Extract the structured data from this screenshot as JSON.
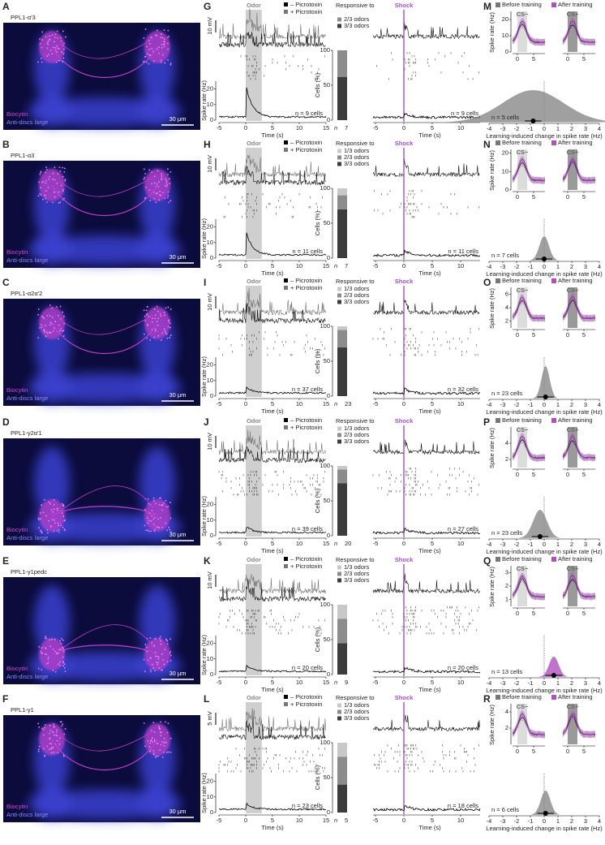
{
  "panels": [
    {
      "letter_image": "A",
      "neuron": "PPL1-α'3",
      "stain1": "Biocytin",
      "stain2": "Anti-discs large",
      "scale": "30 μm",
      "letter_odor": "G",
      "odor": "Odor",
      "pic_minus": "– Picrotoxin",
      "pic_plus": "+ Picrotoxin",
      "mv": "10 mV",
      "rate_label": "Spike rate (Hz)",
      "rate_ticks": [
        0,
        10,
        20
      ],
      "rate_lim": [
        0,
        25
      ],
      "time_ticks": [
        -5,
        0,
        5,
        10,
        15
      ],
      "time_label": "Time (s)",
      "odor_n": "n = 9 cells",
      "responsive": "Responsive to",
      "fractions": [
        {
          "name": "2/3 odors",
          "value": 38,
          "color": "#8c8c8c"
        },
        {
          "name": "3/3 odors",
          "value": 62,
          "color": "#3c3c3c"
        }
      ],
      "cells_label": "Cells (%)",
      "cells_ticks": [
        0,
        50,
        100
      ],
      "n_label": "n",
      "n_value": 7,
      "shock": "Shock",
      "shock_ticks": [
        -5,
        0,
        5,
        10
      ],
      "shock_time_label": "Time (s)",
      "shock_n": "n = 9 cells",
      "letter_train": "M",
      "before": "Before training",
      "after": "After training",
      "cs_minus": "CS−",
      "cs_plus": "CS+",
      "train_label": "Spike rate (Hz)",
      "train_ticks": [
        0,
        10,
        20
      ],
      "train_lim": [
        0,
        25
      ],
      "train_xticks": [
        0,
        5
      ],
      "change_label": "Learning-induced change in spike rate (Hz)",
      "change_ticks": [
        -4,
        -3,
        -2,
        -1,
        0,
        1,
        2,
        3,
        4
      ],
      "change_lim": [
        -4,
        4
      ],
      "mean": -0.8,
      "train_n": "n = 5 cells"
    },
    {
      "letter_image": "B",
      "neuron": "PPL1-α3",
      "stain1": "Biocytin",
      "stain2": "Anti-discs large",
      "scale": "30 μm",
      "letter_odor": "H",
      "odor": "Odor",
      "pic_minus": "– Picrotoxin",
      "pic_plus": "+ Picrotoxin",
      "mv": "10 mV",
      "rate_label": "Spike rate (Hz)",
      "rate_ticks": [
        0,
        10,
        20
      ],
      "rate_lim": [
        0,
        25
      ],
      "time_ticks": [
        -5,
        0,
        5,
        10,
        15
      ],
      "time_label": "Time (s)",
      "odor_n": "n = 11 cells",
      "responsive": "Responsive to",
      "fractions": [
        {
          "name": "1/3 odors",
          "value": 10,
          "color": "#c8c8c8"
        },
        {
          "name": "2/3 odors",
          "value": 20,
          "color": "#8c8c8c"
        },
        {
          "name": "3/3 odors",
          "value": 70,
          "color": "#3c3c3c"
        }
      ],
      "cells_label": "Cells (%)",
      "cells_ticks": [
        0,
        50,
        100
      ],
      "n_label": "n",
      "n_value": 7,
      "shock": "Shock",
      "shock_ticks": [
        -5,
        0,
        5,
        10
      ],
      "shock_time_label": "Time (s)",
      "shock_n": "n = 11 cells",
      "letter_train": "N",
      "before": "Before training",
      "after": "After training",
      "cs_minus": "CS−",
      "cs_plus": "CS+",
      "train_label": "Spike rate (Hz)",
      "train_ticks": [
        0,
        10,
        20
      ],
      "train_lim": [
        0,
        22
      ],
      "train_xticks": [
        0,
        5
      ],
      "change_label": "Learning-induced change in spike rate (Hz)",
      "change_ticks": [
        -4,
        -3,
        -2,
        -1,
        0,
        1,
        2,
        3,
        4
      ],
      "change_lim": [
        -4,
        4
      ],
      "mean": 0,
      "train_n": "n = 7 cells"
    },
    {
      "letter_image": "C",
      "neuron": "PPL1-α2α'2",
      "stain1": "Biocytin",
      "stain2": "Anti-discs large",
      "scale": "30 μm",
      "letter_odor": "I",
      "odor": "Odor",
      "pic_minus": "– Picrotoxin",
      "pic_plus": "+ Picrotoxin",
      "mv": "10 mV",
      "rate_label": "Spike rate (Hz)",
      "rate_ticks": [
        0,
        10,
        20
      ],
      "rate_lim": [
        0,
        25
      ],
      "time_ticks": [
        -5,
        0,
        5,
        10,
        15
      ],
      "time_label": "Time (s)",
      "odor_n": "n = 37 cells",
      "responsive": "Responsive to",
      "fractions": [
        {
          "name": "1/3 odors",
          "value": 5,
          "color": "#c8c8c8"
        },
        {
          "name": "2/3 odors",
          "value": 25,
          "color": "#8c8c8c"
        },
        {
          "name": "3/3 odors",
          "value": 70,
          "color": "#3c3c3c"
        }
      ],
      "cells_label": "Cells (%)",
      "cells_ticks": [
        0,
        50,
        100
      ],
      "n_label": "n",
      "n_value": 23,
      "shock": "Shock",
      "shock_ticks": [
        -5,
        0,
        5,
        10
      ],
      "shock_time_label": "Time (s)",
      "shock_n": "n = 32 cells",
      "letter_train": "O",
      "before": "Before training",
      "after": "After training",
      "cs_minus": "CS−",
      "cs_plus": "CS+",
      "train_label": "Spike rate (Hz)",
      "train_ticks": [
        2,
        4,
        6
      ],
      "train_lim": [
        1,
        7
      ],
      "train_xticks": [
        0,
        5
      ],
      "change_label": "Learning-induced change in spike rate (Hz)",
      "change_ticks": [
        -4,
        -3,
        -2,
        -1,
        0,
        1,
        2,
        3,
        4
      ],
      "change_lim": [
        -4,
        4
      ],
      "mean": 0.1,
      "train_n": "n = 23 cells"
    },
    {
      "letter_image": "D",
      "neuron": "PPL1-γ2α'1",
      "stain1": "Biocytin",
      "stain2": "Anti-discs large",
      "scale": "30 μm",
      "letter_odor": "J",
      "odor": "Odor",
      "pic_minus": "– Picrotoxin",
      "pic_plus": "+ Picrotoxin",
      "mv": "10 mV",
      "rate_label": "Spike rate (Hz)",
      "rate_ticks": [
        0,
        10,
        20
      ],
      "rate_lim": [
        0,
        25
      ],
      "time_ticks": [
        -5,
        0,
        5,
        10,
        15
      ],
      "time_label": "Time (s)",
      "odor_n": "n = 39 cells",
      "responsive": "Responsive to",
      "fractions": [
        {
          "name": "1/3 odors",
          "value": 5,
          "color": "#c8c8c8"
        },
        {
          "name": "2/3 odors",
          "value": 20,
          "color": "#8c8c8c"
        },
        {
          "name": "3/3 odors",
          "value": 75,
          "color": "#3c3c3c"
        }
      ],
      "cells_label": "Cells (%)",
      "cells_ticks": [
        0,
        50,
        100
      ],
      "n_label": "n",
      "n_value": 20,
      "shock": "Shock",
      "shock_ticks": [
        -5,
        0,
        5,
        10
      ],
      "shock_time_label": "Time (s)",
      "shock_n": "n = 27 cells",
      "letter_train": "P",
      "before": "Before training",
      "after": "After training",
      "cs_minus": "CS−",
      "cs_plus": "CS+",
      "train_label": "Spike rate (Hz)",
      "train_ticks": [
        2,
        4
      ],
      "train_lim": [
        1,
        6
      ],
      "train_xticks": [
        0,
        5
      ],
      "change_label": "Learning-induced change in spike rate (Hz)",
      "change_ticks": [
        -4,
        -3,
        -2,
        -1,
        0,
        1,
        2,
        3,
        4
      ],
      "change_lim": [
        -4,
        4
      ],
      "mean": -0.3,
      "train_n": "n = 23 cells"
    },
    {
      "letter_image": "E",
      "neuron": "PPL1-γ1pedc",
      "stain1": "Biocytin",
      "stain2": "Anti-discs large",
      "scale": "30 μm",
      "letter_odor": "K",
      "odor": "Odor",
      "pic_minus": "– Picrotoxin",
      "pic_plus": "+ Picrotoxin",
      "mv": "10 mV",
      "rate_label": "Spike rate (Hz)",
      "rate_ticks": [
        0,
        10,
        20
      ],
      "rate_lim": [
        0,
        25
      ],
      "time_ticks": [
        -5,
        0,
        5,
        10,
        15
      ],
      "time_label": "Time (s)",
      "odor_n": "n = 20 cells",
      "responsive": "Responsive to",
      "fractions": [
        {
          "name": "1/3 odors",
          "value": 20,
          "color": "#c8c8c8"
        },
        {
          "name": "2/3 odors",
          "value": 35,
          "color": "#8c8c8c"
        },
        {
          "name": "3/3 odors",
          "value": 45,
          "color": "#3c3c3c"
        }
      ],
      "cells_label": "Cells (%)",
      "cells_ticks": [
        0,
        50,
        100
      ],
      "n_label": "n",
      "n_value": 9,
      "shock": "Shock",
      "shock_ticks": [
        -5,
        0,
        5,
        10
      ],
      "shock_time_label": "Time (s)",
      "shock_n": "n = 20 cells",
      "letter_train": "Q",
      "before": "Before training",
      "after": "After training",
      "cs_minus": "CS−",
      "cs_plus": "CS+",
      "train_label": "Spike rate (Hz)",
      "train_ticks": [
        1,
        2,
        3
      ],
      "train_lim": [
        0.5,
        3.5
      ],
      "train_xticks": [
        0,
        5
      ],
      "change_label": "Learning-induced change in spike rate (Hz)",
      "change_ticks": [
        -4,
        -3,
        -2,
        -1,
        0,
        1,
        2,
        3,
        4
      ],
      "change_lim": [
        -4,
        4
      ],
      "mean": 0.7,
      "train_n": "n = 13 cells"
    },
    {
      "letter_image": "F",
      "neuron": "PPL1-γ1",
      "stain1": "Biocytin",
      "stain2": "Anti-discs large",
      "scale": "30 μm",
      "letter_odor": "L",
      "odor": "Odor",
      "pic_minus": "– Picrotoxin",
      "pic_plus": "+ Picrotoxin",
      "mv": "5 mV",
      "rate_label": "Spike rate (Hz)",
      "rate_ticks": [
        0,
        10,
        20
      ],
      "rate_lim": [
        0,
        25
      ],
      "time_ticks": [
        -5,
        0,
        5,
        10,
        15
      ],
      "time_label": "Time (s)",
      "odor_n": "n = 23 cells",
      "responsive": "Responsive to",
      "fractions": [
        {
          "name": "1/3 odors",
          "value": 20,
          "color": "#c8c8c8"
        },
        {
          "name": "2/3 odors",
          "value": 40,
          "color": "#8c8c8c"
        },
        {
          "name": "3/3 odors",
          "value": 40,
          "color": "#3c3c3c"
        }
      ],
      "cells_label": "Cells (%)",
      "cells_ticks": [
        0,
        50,
        100
      ],
      "n_label": "n",
      "n_value": 5,
      "shock": "Shock",
      "shock_ticks": [
        -5,
        0,
        5,
        10
      ],
      "shock_time_label": "Time (s)",
      "shock_n": "n = 18 cells",
      "letter_train": "R",
      "before": "Before training",
      "after": "After training",
      "cs_minus": "CS−",
      "cs_plus": "CS+",
      "train_label": "Spike rate (Hz)",
      "train_ticks": [
        2,
        4
      ],
      "train_lim": [
        0,
        5
      ],
      "train_xticks": [
        0,
        5
      ],
      "change_label": "Learning-induced change in spike rate (Hz)",
      "change_ticks": [
        -4,
        -3,
        -2,
        -1,
        0,
        1,
        2,
        3,
        4
      ],
      "change_lim": [
        -4,
        4
      ],
      "mean": 0.1,
      "train_n": "n = 6 cells"
    }
  ]
}
